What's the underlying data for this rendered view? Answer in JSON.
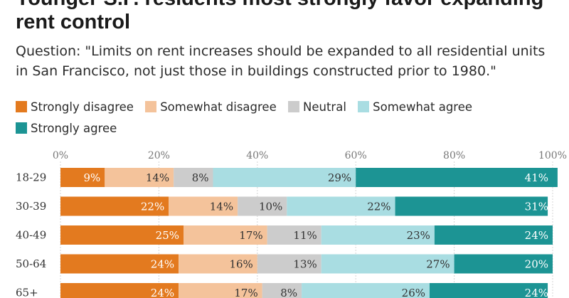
{
  "title": "Younger S.F. residents most strongly favor expanding rent control",
  "subtitle": "Question: \"Limits on rent increases should be expanded to all residential units in San Francisco, not just those in buildings constructed prior to 1980.\"",
  "legend": [
    {
      "label": "Strongly disagree",
      "color": "#e37a1f"
    },
    {
      "label": "Somewhat disagree",
      "color": "#f4c39b"
    },
    {
      "label": "Neutral",
      "color": "#cccccc"
    },
    {
      "label": "Somewhat agree",
      "color": "#a9dde2"
    },
    {
      "label": "Strongly agree",
      "color": "#1c9494"
    }
  ],
  "chart_data": {
    "type": "bar",
    "orientation": "horizontal",
    "stacked": true,
    "categories": [
      "18-29",
      "30-39",
      "40-49",
      "50-64",
      "65+"
    ],
    "series": [
      {
        "name": "Strongly disagree",
        "values": [
          9,
          22,
          25,
          24,
          24
        ]
      },
      {
        "name": "Somewhat disagree",
        "values": [
          14,
          14,
          17,
          16,
          17
        ]
      },
      {
        "name": "Neutral",
        "values": [
          8,
          10,
          11,
          13,
          8
        ]
      },
      {
        "name": "Somewhat agree",
        "values": [
          29,
          22,
          23,
          27,
          26
        ]
      },
      {
        "name": "Strongly agree",
        "values": [
          41,
          31,
          24,
          20,
          24
        ]
      }
    ],
    "value_labels": [
      [
        "9%",
        "14%",
        "8%",
        "29%",
        "41%"
      ],
      [
        "22%",
        "14%",
        "10%",
        "22%",
        "31%"
      ],
      [
        "25%",
        "17%",
        "11%",
        "23%",
        "24%"
      ],
      [
        "24%",
        "16%",
        "13%",
        "27%",
        "20%"
      ],
      [
        "24%",
        "17%",
        "8%",
        "26%",
        "24%"
      ]
    ],
    "xticks": [
      0,
      20,
      40,
      60,
      80,
      100
    ],
    "xtick_labels": [
      "0%",
      "20%",
      "40%",
      "60%",
      "80%",
      "100%"
    ],
    "xlim": [
      0,
      100
    ],
    "grid": true
  }
}
